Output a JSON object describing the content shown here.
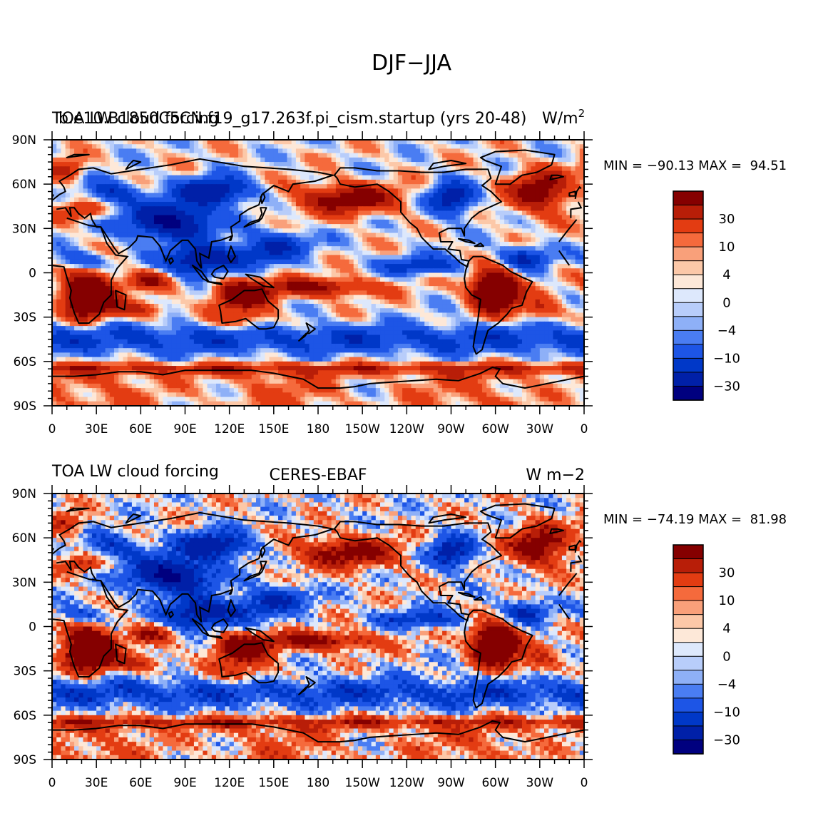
{
  "figure_title": "DJF−JJA",
  "colors": {
    "levels": [
      "#00007f",
      "#0020a8",
      "#0038c8",
      "#1d55e6",
      "#4a7df2",
      "#8eb0f7",
      "#b8cdfa",
      "#dde8fc",
      "#fde8d8",
      "#fcc8a8",
      "#f9a07a",
      "#f56a3c",
      "#e33c12",
      "#b81e08",
      "#850000"
    ],
    "coastline": "#000000"
  },
  "chart_data": [
    {
      "type": "heatmap",
      "panel": "model",
      "title_left": "TOA LW cloud forcing",
      "title_overlap": "b.e10.B1850C5CN.f19_g17.263f.pi_cism.startup (yrs 20-48)",
      "title_right": "W/m",
      "title_right_sup": "2",
      "min_max_text": "MIN = −90.13 MAX =  94.51",
      "min": -90.13,
      "max": 94.51,
      "projection": "cylindrical-equidistant",
      "lat_ticks": [
        "90N",
        "60N",
        "30N",
        "0",
        "30S",
        "60S",
        "90S"
      ],
      "lon_ticks": [
        "0",
        "30E",
        "60E",
        "90E",
        "120E",
        "150E",
        "180",
        "150W",
        "120W",
        "90W",
        "60W",
        "30W",
        "0"
      ],
      "colorbar_labels": [
        "30",
        "10",
        "4",
        "0",
        "−4",
        "−10",
        "−30"
      ],
      "contour_levels": [
        -50,
        -30,
        -20,
        -10,
        -6,
        -4,
        -2,
        0,
        2,
        4,
        6,
        10,
        20,
        30,
        50
      ]
    },
    {
      "type": "heatmap",
      "panel": "observations",
      "title_left": "TOA LW cloud forcing",
      "title_center": "CERES-EBAF",
      "title_right": "W m−2",
      "min_max_text": "MIN = −74.19 MAX =  81.98",
      "min": -74.19,
      "max": 81.98,
      "projection": "cylindrical-equidistant",
      "lat_ticks": [
        "90N",
        "60N",
        "30N",
        "0",
        "30S",
        "60S",
        "90S"
      ],
      "lon_ticks": [
        "0",
        "30E",
        "60E",
        "90E",
        "120E",
        "150E",
        "180",
        "150W",
        "120W",
        "90W",
        "60W",
        "30W",
        "0"
      ],
      "colorbar_labels": [
        "30",
        "10",
        "4",
        "0",
        "−4",
        "−10",
        "−30"
      ],
      "contour_levels": [
        -50,
        -30,
        -20,
        -10,
        -6,
        -4,
        -2,
        0,
        2,
        4,
        6,
        10,
        20,
        30,
        50
      ]
    }
  ]
}
